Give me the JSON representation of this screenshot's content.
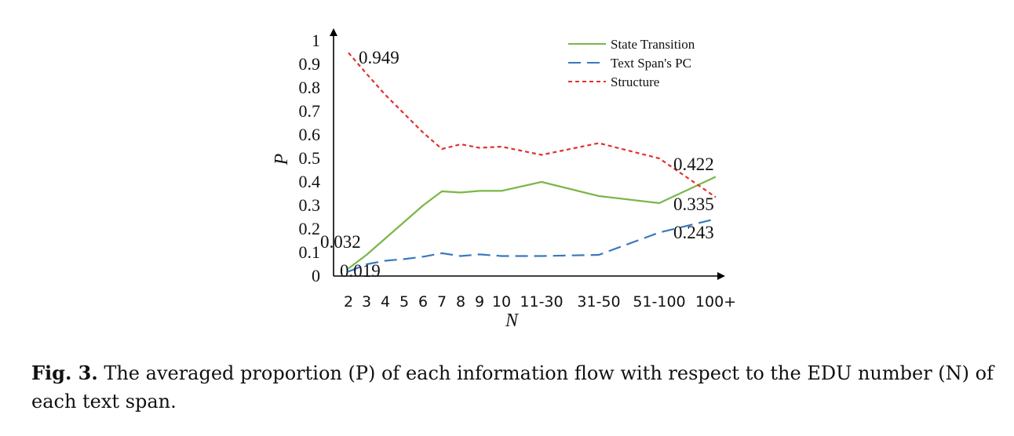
{
  "caption": {
    "label": "Fig. 3.",
    "text": "The averaged proportion (P) of each information flow with respect to the EDU number (N) of each text span."
  },
  "chart_data": {
    "type": "line",
    "xlabel": "N",
    "ylabel": "P",
    "ylim": [
      0,
      1
    ],
    "yticks": [
      "0",
      "0.1",
      "0.2",
      "0.3",
      "0.4",
      "0.5",
      "0.6",
      "0.7",
      "0.8",
      "0.9",
      "1"
    ],
    "categories": [
      "2",
      "3",
      "4",
      "5",
      "6",
      "7",
      "8",
      "9",
      "10",
      "11-30",
      "31-50",
      "51-100",
      "100+"
    ],
    "legend_position": "top-right",
    "grid": false,
    "series": [
      {
        "name": "State Transition",
        "color": "#7ab648",
        "style": "solid",
        "values": [
          0.032,
          0.09,
          0.16,
          0.23,
          0.3,
          0.36,
          0.355,
          0.362,
          0.362,
          0.4,
          0.34,
          0.31,
          0.422
        ]
      },
      {
        "name": "Text Span's PC",
        "color": "#3a78c0",
        "style": "dashed",
        "values": [
          0.019,
          0.05,
          0.065,
          0.072,
          0.082,
          0.097,
          0.085,
          0.092,
          0.085,
          0.085,
          0.09,
          0.185,
          0.243
        ]
      },
      {
        "name": "Structure",
        "color": "#e0322f",
        "style": "dotted",
        "values": [
          0.949,
          0.86,
          0.77,
          0.69,
          0.61,
          0.54,
          0.56,
          0.545,
          0.55,
          0.515,
          0.565,
          0.5,
          0.335
        ]
      }
    ],
    "annotations": [
      "0.949",
      "0.032",
      "0.019",
      "0.422",
      "0.335",
      "0.243"
    ]
  }
}
